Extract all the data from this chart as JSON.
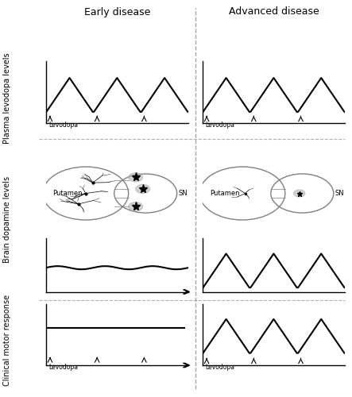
{
  "title_left": "Early disease",
  "title_right": "Advanced disease",
  "ylabel_top": "Plasma levodopa levels",
  "ylabel_mid": "Brain dopamine levels",
  "ylabel_bot": "Clinical motor response",
  "xlabel_bottom": "Levodopa",
  "bg_color": "#ffffff",
  "line_color": "#000000",
  "dashed_line_color": "#888888",
  "arrow_color": "#000000"
}
